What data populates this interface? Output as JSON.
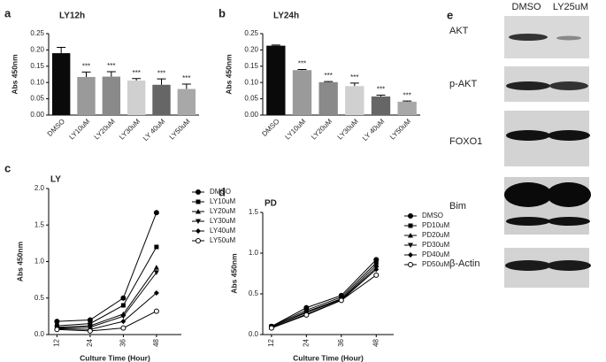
{
  "chart_data": [
    {
      "type": "bar",
      "label": "a",
      "title": "LY12h",
      "ylabel": "Abs 450nm",
      "categories": [
        "DMSO",
        "LY10uM",
        "LY20uM",
        "LY30uM",
        "LY 40uM",
        "LY50uM"
      ],
      "values": [
        0.19,
        0.117,
        0.118,
        0.106,
        0.093,
        0.08
      ],
      "errors": [
        0.018,
        0.015,
        0.015,
        0.006,
        0.018,
        0.015
      ],
      "annotations": [
        null,
        "***",
        "***",
        "***",
        "***",
        "***"
      ],
      "colors": [
        "#0a0a0a",
        "#9a9a9a",
        "#8a8a8a",
        "#d0d0d0",
        "#666666",
        "#a8a8a8"
      ],
      "ylim": [
        0,
        0.25
      ],
      "yticks": [
        {
          "value": 0,
          "label": "0.00"
        },
        {
          "value": 0.05,
          "label": "0.05"
        },
        {
          "value": 0.1,
          "label": "0.10"
        },
        {
          "value": 0.15,
          "label": "0.15"
        },
        {
          "value": 0.2,
          "label": "0.20"
        },
        {
          "value": 0.25,
          "label": "0.25"
        }
      ]
    },
    {
      "type": "bar",
      "label": "b",
      "title": "LY24h",
      "ylabel": "Abs 450nm",
      "categories": [
        "DMSO",
        "LY10uM",
        "LY20uM",
        "LY30uM",
        "LY 40uM",
        "LY50uM"
      ],
      "values": [
        0.213,
        0.138,
        0.101,
        0.089,
        0.057,
        0.041
      ],
      "errors": [
        0.002,
        0.002,
        0.002,
        0.009,
        0.004,
        0.002
      ],
      "annotations": [
        null,
        "***",
        "***",
        "***",
        "***",
        "***"
      ],
      "colors": [
        "#0a0a0a",
        "#9a9a9a",
        "#8a8a8a",
        "#d0d0d0",
        "#666666",
        "#a8a8a8"
      ],
      "ylim": [
        0,
        0.25
      ],
      "yticks": [
        {
          "value": 0,
          "label": "0.00"
        },
        {
          "value": 0.05,
          "label": "0.05"
        },
        {
          "value": 0.1,
          "label": "0.10"
        },
        {
          "value": 0.15,
          "label": "0.15"
        },
        {
          "value": 0.2,
          "label": "0.20"
        },
        {
          "value": 0.25,
          "label": "0.25"
        }
      ]
    },
    {
      "type": "line",
      "label": "c",
      "title": "LY",
      "ylabel": "Abs 450nm",
      "xlabel": "Culture Time (Hour)",
      "x": [
        12,
        24,
        36,
        48
      ],
      "xlim": [
        9,
        57
      ],
      "xticks": [
        12,
        24,
        36,
        48
      ],
      "ylim": [
        0,
        2
      ],
      "yticks": [
        {
          "value": 0,
          "label": "0.0"
        },
        {
          "value": 0.5,
          "label": "0.5"
        },
        {
          "value": 1,
          "label": "1.0"
        },
        {
          "value": 1.5,
          "label": "1.5"
        },
        {
          "value": 2,
          "label": "2.0"
        }
      ],
      "series": [
        {
          "name": "DMSO",
          "color": "#000000",
          "marker": "circle",
          "values": [
            0.18,
            0.2,
            0.5,
            1.67
          ]
        },
        {
          "name": "LY10uM",
          "color": "#000000",
          "marker": "square",
          "values": [
            0.12,
            0.15,
            0.4,
            1.2
          ]
        },
        {
          "name": "LY20uM",
          "color": "#000000",
          "marker": "triangle-up",
          "values": [
            0.1,
            0.12,
            0.28,
            0.92
          ]
        },
        {
          "name": "LY30uM",
          "color": "#000000",
          "marker": "triangle-down",
          "values": [
            0.09,
            0.1,
            0.25,
            0.85
          ]
        },
        {
          "name": "LY40uM",
          "color": "#000000",
          "marker": "diamond",
          "values": [
            0.08,
            0.07,
            0.18,
            0.57
          ]
        },
        {
          "name": "LY50uM",
          "color": "#000000",
          "marker": "open-circle",
          "values": [
            0.07,
            0.05,
            0.09,
            0.32
          ]
        }
      ]
    },
    {
      "type": "line",
      "label": "d",
      "title": "PD",
      "ylabel": "Abs 450nm",
      "xlabel": "Culture Time (Hour)",
      "x": [
        12,
        24,
        36,
        48
      ],
      "xlim": [
        9,
        54
      ],
      "xticks": [
        12,
        24,
        36,
        48
      ],
      "ylim": [
        0,
        1.5
      ],
      "yticks": [
        {
          "value": 0,
          "label": "0.0"
        },
        {
          "value": 0.5,
          "label": "0.5"
        },
        {
          "value": 1,
          "label": "1.0"
        },
        {
          "value": 1.5,
          "label": "1.5"
        }
      ],
      "series": [
        {
          "name": "DMSO",
          "color": "#000000",
          "marker": "circle",
          "values": [
            0.1,
            0.33,
            0.48,
            0.92
          ]
        },
        {
          "name": "PD10uM",
          "color": "#000000",
          "marker": "square",
          "values": [
            0.1,
            0.3,
            0.46,
            0.88
          ]
        },
        {
          "name": "PD20uM",
          "color": "#000000",
          "marker": "triangle-up",
          "values": [
            0.09,
            0.28,
            0.44,
            0.85
          ]
        },
        {
          "name": "PD30uM",
          "color": "#000000",
          "marker": "triangle-down",
          "values": [
            0.09,
            0.27,
            0.43,
            0.82
          ]
        },
        {
          "name": "PD40uM",
          "color": "#000000",
          "marker": "diamond",
          "values": [
            0.08,
            0.25,
            0.42,
            0.8
          ]
        },
        {
          "name": "PD50uM",
          "color": "#000000",
          "marker": "open-circle",
          "values": [
            0.08,
            0.24,
            0.42,
            0.73
          ]
        }
      ]
    }
  ],
  "blot": {
    "label": "e",
    "columns": [
      "DMSO",
      "LY25uM"
    ],
    "rows": [
      "AKT",
      "p-AKT",
      "FOXO1",
      "Bim",
      "β-Actin"
    ]
  }
}
